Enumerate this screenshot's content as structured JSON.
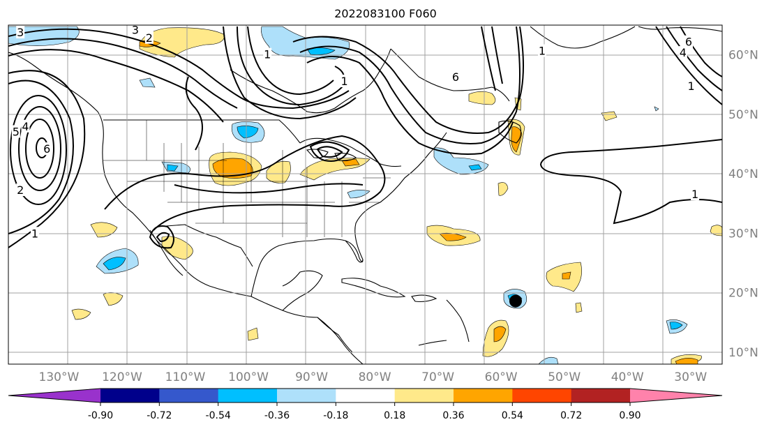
{
  "title": "2022083100 F060",
  "map": {
    "projection": "PlateCarree",
    "lon_range": [
      -138,
      -25
    ],
    "lat_range": [
      8,
      65
    ],
    "lon_ticks": [
      {
        "value": -130,
        "label": "130°W"
      },
      {
        "value": -120,
        "label": "120°W"
      },
      {
        "value": -110,
        "label": "110°W"
      },
      {
        "value": -100,
        "label": "100°W"
      },
      {
        "value": -90,
        "label": "90°W"
      },
      {
        "value": -80,
        "label": "80°W"
      },
      {
        "value": -70,
        "label": "70°W"
      },
      {
        "value": -60,
        "label": "60°W"
      },
      {
        "value": -50,
        "label": "50°W"
      },
      {
        "value": -40,
        "label": "40°W"
      },
      {
        "value": -30,
        "label": "30°W"
      }
    ],
    "lat_ticks": [
      {
        "value": 60,
        "label": "60°N"
      },
      {
        "value": 50,
        "label": "50°N"
      },
      {
        "value": 40,
        "label": "40°N"
      },
      {
        "value": 30,
        "label": "30°N"
      },
      {
        "value": 20,
        "label": "20°N"
      },
      {
        "value": 10,
        "label": "10°N"
      }
    ],
    "grid": true,
    "marker": {
      "lon": -57.7,
      "lat": 18.6,
      "color": "#000000"
    },
    "contour_labels": [
      {
        "text": "3",
        "lon": -136.1,
        "lat": 63.7
      },
      {
        "text": "3",
        "lon": -117.9,
        "lat": 64.1
      },
      {
        "text": "2",
        "lon": -115.7,
        "lat": 62.8
      },
      {
        "text": "1",
        "lon": -97.0,
        "lat": 60.0
      },
      {
        "text": "4",
        "lon": -135.3,
        "lat": 47.9
      },
      {
        "text": "5",
        "lon": -136.8,
        "lat": 47.0
      },
      {
        "text": "6",
        "lon": -131.9,
        "lat": 44.1
      },
      {
        "text": "2",
        "lon": -136.1,
        "lat": 37.2
      },
      {
        "text": "1",
        "lon": -133.8,
        "lat": 29.9
      },
      {
        "text": "1",
        "lon": -84.8,
        "lat": 55.5
      },
      {
        "text": "6",
        "lon": -67.2,
        "lat": 56.2
      },
      {
        "text": "1",
        "lon": -53.5,
        "lat": 60.6
      },
      {
        "text": "6",
        "lon": -30.3,
        "lat": 62.1
      },
      {
        "text": "4",
        "lon": -31.2,
        "lat": 60.3
      },
      {
        "text": "1",
        "lon": -29.9,
        "lat": 54.7
      },
      {
        "text": "1",
        "lon": -29.3,
        "lat": 36.5
      }
    ]
  },
  "colorbar": {
    "levels": [
      "-0.90",
      "-0.72",
      "-0.54",
      "-0.36",
      "-0.18",
      "0.18",
      "0.36",
      "0.54",
      "0.72",
      "0.90"
    ],
    "colors": [
      "#9932cc",
      "#00008b",
      "#3558cc",
      "#00bfff",
      "#aee0fa",
      "#ffffff",
      "#ffe98a",
      "#ffa500",
      "#ff4500",
      "#b22222",
      "#ff82ab"
    ],
    "extend": "both"
  }
}
